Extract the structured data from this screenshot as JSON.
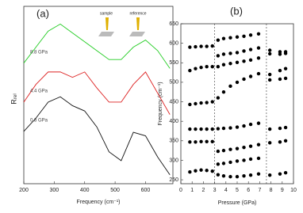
{
  "chart_data": [
    {
      "type": "line",
      "label": "(a)",
      "xlabel": "Frequency (cm⁻¹)",
      "ylabel": "Rᵣₑₗ",
      "x": [
        200,
        240,
        280,
        320,
        360,
        400,
        440,
        480,
        520,
        560,
        600,
        640,
        680
      ],
      "xlim": [
        200,
        690
      ],
      "xticks": [
        200,
        300,
        400,
        500,
        600
      ],
      "ylim": [
        0,
        10
      ],
      "annotations": [
        "sample",
        "reference"
      ],
      "series": [
        {
          "name": "8.8 GPa",
          "color": "#22cc22",
          "values": [
            6.8,
            7.7,
            8.6,
            9.0,
            8.5,
            8.0,
            7.5,
            7.0,
            7.0,
            7.7,
            8.1,
            7.5,
            6.5
          ]
        },
        {
          "name": "4.4 GPa",
          "color": "#dd2222",
          "values": [
            4.6,
            5.6,
            6.3,
            6.3,
            6.0,
            6.3,
            5.4,
            4.6,
            4.6,
            5.6,
            6.3,
            5.1,
            3.9
          ]
        },
        {
          "name": "0.8 GPa",
          "color": "#111111",
          "values": [
            2.95,
            3.7,
            4.6,
            4.9,
            4.4,
            4.1,
            3.2,
            1.8,
            1.3,
            2.9,
            2.7,
            1.5,
            0.5
          ]
        }
      ]
    },
    {
      "type": "scatter",
      "label": "(b)",
      "xlabel": "Pressure (GPa)",
      "ylabel": "Frequency (cm⁻¹)",
      "color": "#000000",
      "x": [
        0.8,
        1.3,
        1.8,
        2.3,
        2.8,
        3.3,
        3.8,
        4.4,
        5.0,
        5.6,
        6.2,
        6.9,
        7.9,
        8.8,
        9.3
      ],
      "xlim": [
        0,
        10
      ],
      "xticks": [
        0,
        1,
        2,
        3,
        4,
        5,
        6,
        7,
        8,
        9,
        10
      ],
      "ylim": [
        240,
        650
      ],
      "yticks": [
        250,
        300,
        350,
        400,
        450,
        500,
        550,
        600,
        650
      ],
      "vlines": [
        3.0,
        7.6
      ],
      "series": [
        {
          "values": [
            590,
            591,
            592,
            592,
            593,
            608,
            612,
            614,
            616,
            618,
            621,
            624,
            582,
            578,
            578
          ]
        },
        {
          "values": [
            null,
            null,
            null,
            null,
            null,
            568,
            572,
            574,
            576,
            580,
            584,
            588,
            573,
            572,
            574
          ]
        },
        {
          "values": [
            530,
            535,
            538,
            540,
            540,
            540,
            545,
            548,
            551,
            554,
            557,
            562,
            520,
            530,
            535
          ]
        },
        {
          "values": [
            443,
            445,
            447,
            448,
            450,
            460,
            475,
            490,
            500,
            508,
            515,
            522,
            506,
            508,
            510
          ]
        },
        {
          "values": [
            380,
            380,
            380,
            380,
            380,
            381,
            382,
            383,
            385,
            388,
            392,
            395,
            380,
            382,
            384
          ]
        },
        {
          "values": [
            347,
            347,
            348,
            348,
            348,
            323,
            325,
            328,
            330,
            333,
            336,
            340,
            345,
            347,
            350
          ]
        },
        {
          "values": [
            null,
            null,
            null,
            null,
            null,
            290,
            292,
            295,
            298,
            300,
            303,
            305,
            null,
            null,
            null
          ]
        },
        {
          "values": [
            270,
            273,
            275,
            274,
            272,
            263,
            260,
            258,
            258,
            260,
            262,
            265,
            262,
            265,
            268
          ]
        }
      ]
    }
  ]
}
